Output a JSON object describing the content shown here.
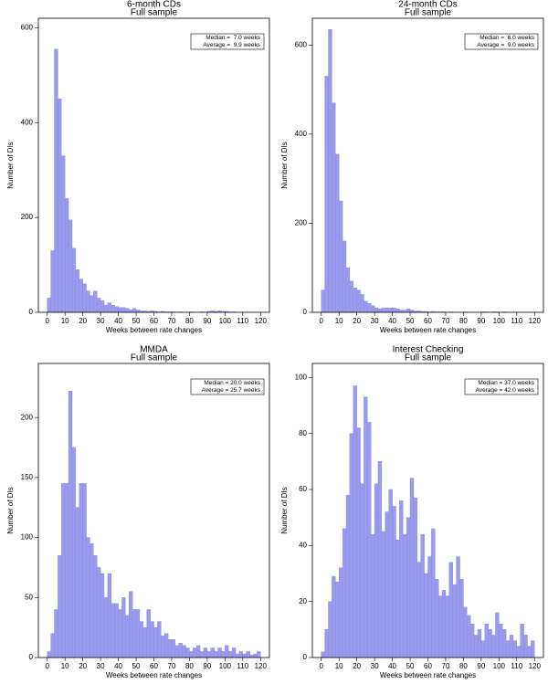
{
  "chart_data": [
    {
      "type": "histogram",
      "title": "6-month CDs",
      "subtitle": "Full sample",
      "xlabel": "Weeks between rate changes",
      "ylabel": "Number of DIs",
      "annotations": [
        "Median =  7.0 weeks",
        "Average =  9.9 weeks"
      ],
      "color": "#9b9bee",
      "bins": [
        0,
        2,
        4,
        6,
        8,
        10,
        12,
        14,
        16,
        18,
        20,
        22,
        24,
        26,
        28,
        30,
        32,
        34,
        36,
        38,
        40,
        42,
        44,
        46,
        48,
        50,
        52,
        54,
        56,
        58,
        60,
        62,
        64,
        66,
        68,
        70,
        72,
        74,
        76,
        78,
        80,
        82,
        84,
        86,
        88,
        90,
        92,
        94,
        96,
        98,
        100,
        102,
        104,
        106,
        108,
        110,
        112,
        114,
        116,
        118,
        120
      ],
      "values": [
        30,
        130,
        555,
        450,
        330,
        240,
        195,
        135,
        90,
        70,
        60,
        45,
        35,
        45,
        30,
        25,
        15,
        20,
        15,
        12,
        10,
        10,
        8,
        5,
        8,
        5,
        3,
        3,
        2,
        3,
        2,
        1,
        2,
        1,
        1,
        1,
        0,
        1,
        0,
        0,
        1,
        0,
        0,
        1,
        0,
        2,
        3,
        2,
        3,
        2,
        2,
        1,
        1,
        0,
        0,
        0,
        0,
        0,
        0,
        0
      ],
      "xlim": [
        -5,
        125
      ],
      "xticks": [
        0,
        10,
        20,
        30,
        40,
        50,
        60,
        70,
        80,
        90,
        100,
        110,
        120
      ],
      "ylim": [
        0,
        620
      ],
      "yticks": [
        0,
        200,
        400,
        600
      ]
    },
    {
      "type": "histogram",
      "title": "24-month CDs",
      "subtitle": "Full sample",
      "xlabel": "Weeks between rate changes",
      "ylabel": "Number of DIs",
      "annotations": [
        "Median =  6.0 weeks",
        "Average =  9.0 weeks"
      ],
      "color": "#9b9bee",
      "bins": [
        0,
        2,
        4,
        6,
        8,
        10,
        12,
        14,
        16,
        18,
        20,
        22,
        24,
        26,
        28,
        30,
        32,
        34,
        36,
        38,
        40,
        42,
        44,
        46,
        48,
        50,
        52,
        54,
        56,
        58,
        60,
        62,
        64,
        66,
        68,
        70,
        72,
        74,
        76,
        78,
        80,
        82,
        84,
        86,
        88,
        90,
        92,
        94,
        96,
        98,
        100,
        102,
        104,
        106,
        108,
        110,
        112,
        114,
        116,
        118,
        120
      ],
      "values": [
        50,
        530,
        635,
        470,
        355,
        250,
        160,
        100,
        70,
        55,
        50,
        40,
        25,
        20,
        15,
        10,
        8,
        10,
        10,
        10,
        10,
        8,
        5,
        5,
        8,
        5,
        3,
        3,
        2,
        2,
        1,
        2,
        1,
        1,
        1,
        0,
        1,
        0,
        0,
        0,
        1,
        0,
        0,
        0,
        0,
        1,
        1,
        0,
        1,
        1,
        0,
        1,
        0,
        0,
        0,
        0,
        0,
        0,
        0,
        0
      ],
      "xlim": [
        -5,
        125
      ],
      "xticks": [
        0,
        10,
        20,
        30,
        40,
        50,
        60,
        70,
        80,
        90,
        100,
        110,
        120
      ],
      "ylim": [
        0,
        660
      ],
      "yticks": [
        0,
        200,
        400,
        600
      ]
    },
    {
      "type": "histogram",
      "title": "MMDA",
      "subtitle": "Full sample",
      "xlabel": "Weeks between rate changes",
      "ylabel": "Number of DIs",
      "annotations": [
        "Median = 20.0 weeks",
        "Average = 25.7 weeks"
      ],
      "color": "#9b9bee",
      "bins": [
        0,
        2,
        4,
        6,
        8,
        10,
        12,
        14,
        16,
        18,
        20,
        22,
        24,
        26,
        28,
        30,
        32,
        34,
        36,
        38,
        40,
        42,
        44,
        46,
        48,
        50,
        52,
        54,
        56,
        58,
        60,
        62,
        64,
        66,
        68,
        70,
        72,
        74,
        76,
        78,
        80,
        82,
        84,
        86,
        88,
        90,
        92,
        94,
        96,
        98,
        100,
        102,
        104,
        106,
        108,
        110,
        112,
        114,
        116,
        118,
        120
      ],
      "values": [
        5,
        20,
        40,
        85,
        145,
        145,
        222,
        175,
        125,
        145,
        145,
        100,
        95,
        85,
        75,
        70,
        50,
        70,
        45,
        45,
        40,
        50,
        35,
        55,
        40,
        40,
        30,
        25,
        40,
        30,
        25,
        30,
        18,
        20,
        15,
        15,
        10,
        12,
        10,
        8,
        5,
        8,
        10,
        5,
        8,
        5,
        8,
        5,
        8,
        5,
        10,
        5,
        8,
        3,
        5,
        3,
        5,
        2,
        3,
        5
      ],
      "xlim": [
        -5,
        125
      ],
      "xticks": [
        0,
        10,
        20,
        30,
        40,
        50,
        60,
        70,
        80,
        90,
        100,
        110,
        120
      ],
      "ylim": [
        0,
        245
      ],
      "yticks": [
        0,
        50,
        100,
        150,
        200
      ]
    },
    {
      "type": "histogram",
      "title": "Interest Checking",
      "subtitle": "Full sample",
      "xlabel": "Weeks between rate changes",
      "ylabel": "Number of DIs",
      "annotations": [
        "Median = 37.0 weeks",
        "Average = 42.0 weeks"
      ],
      "color": "#9b9bee",
      "bins": [
        0,
        2,
        4,
        6,
        8,
        10,
        12,
        14,
        16,
        18,
        20,
        22,
        24,
        26,
        28,
        30,
        32,
        34,
        36,
        38,
        40,
        42,
        44,
        46,
        48,
        50,
        52,
        54,
        56,
        58,
        60,
        62,
        64,
        66,
        68,
        70,
        72,
        74,
        76,
        78,
        80,
        82,
        84,
        86,
        88,
        90,
        92,
        94,
        96,
        98,
        100,
        102,
        104,
        106,
        108,
        110,
        112,
        114,
        116,
        118,
        120
      ],
      "values": [
        2,
        10,
        20,
        29,
        27,
        32,
        46,
        58,
        80,
        97,
        82,
        62,
        93,
        84,
        44,
        62,
        70,
        45,
        52,
        60,
        54,
        42,
        56,
        44,
        50,
        64,
        57,
        34,
        44,
        30,
        36,
        46,
        28,
        22,
        24,
        22,
        34,
        26,
        36,
        28,
        18,
        15,
        12,
        8,
        10,
        6,
        12,
        10,
        8,
        16,
        12,
        10,
        6,
        8,
        6,
        4,
        12,
        8,
        4,
        6
      ],
      "xlim": [
        -5,
        125
      ],
      "xticks": [
        0,
        10,
        20,
        30,
        40,
        50,
        60,
        70,
        80,
        90,
        100,
        110,
        120
      ],
      "ylim": [
        0,
        105
      ],
      "yticks": [
        0,
        20,
        40,
        60,
        80,
        100
      ]
    }
  ]
}
